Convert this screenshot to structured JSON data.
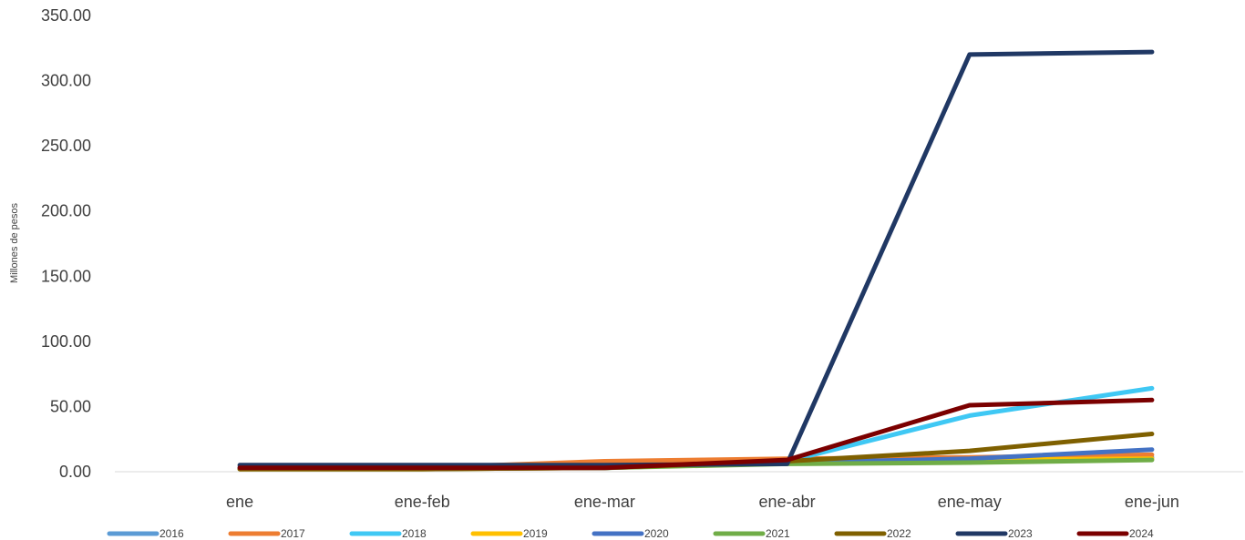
{
  "chart_data": {
    "type": "line",
    "title": "",
    "xlabel": "",
    "ylabel": "Millones de pesos",
    "ylim": [
      0,
      350
    ],
    "yticks": [
      "0.00",
      "50.00",
      "100.00",
      "150.00",
      "200.00",
      "250.00",
      "300.00",
      "350.00"
    ],
    "categories": [
      "ene",
      "ene-feb",
      "ene-mar",
      "ene-abr",
      "ene-may",
      "ene-jun"
    ],
    "grid": false,
    "legend_position": "bottom",
    "series": [
      {
        "name": "2016",
        "color": "#5B9BD5",
        "values": [
          3.0,
          3.0,
          3.5,
          7.0,
          9.0,
          11.0
        ]
      },
      {
        "name": "2017",
        "color": "#ED7D31",
        "values": [
          2.0,
          3.0,
          8.0,
          10.0,
          11.0,
          13.0
        ]
      },
      {
        "name": "2018",
        "color": "#3FC8F4",
        "values": [
          3.0,
          3.0,
          3.0,
          8.0,
          43.0,
          64.0
        ]
      },
      {
        "name": "2019",
        "color": "#FFC000",
        "values": [
          2.0,
          2.0,
          3.0,
          7.0,
          9.0,
          10.0
        ]
      },
      {
        "name": "2020",
        "color": "#4472C4",
        "values": [
          3.0,
          3.0,
          3.0,
          7.0,
          10.0,
          17.0
        ]
      },
      {
        "name": "2021",
        "color": "#70AD47",
        "values": [
          2.0,
          2.0,
          3.0,
          6.0,
          7.0,
          9.0
        ]
      },
      {
        "name": "2022",
        "color": "#7F6000",
        "values": [
          2.0,
          2.0,
          3.0,
          8.0,
          16.0,
          29.0
        ]
      },
      {
        "name": "2023",
        "color": "#203864",
        "values": [
          5.0,
          5.0,
          5.0,
          6.0,
          320.0,
          322.0
        ]
      },
      {
        "name": "2024",
        "color": "#7B0000",
        "values": [
          3.0,
          3.0,
          3.0,
          9.0,
          51.0,
          55.0
        ]
      }
    ]
  }
}
